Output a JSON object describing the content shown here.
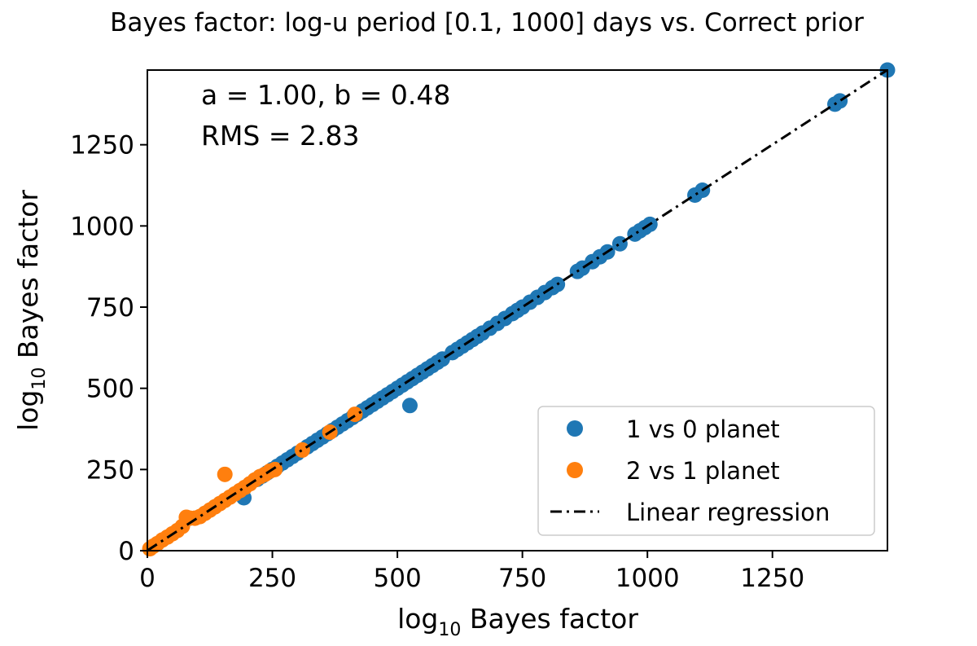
{
  "chart_data": {
    "type": "scatter",
    "title": "Bayes factor: log-u period [0.1, 1000] days vs. Correct prior",
    "xlabel": {
      "prefix": "log",
      "sub": "10",
      "suffix": " Bayes factor"
    },
    "ylabel": {
      "prefix": "log",
      "sub": "10",
      "suffix": " Bayes factor"
    },
    "xlim": [
      0,
      1480
    ],
    "ylim": [
      0,
      1480
    ],
    "xticks": [
      0,
      250,
      500,
      750,
      1000,
      1250
    ],
    "yticks": [
      0,
      250,
      500,
      750,
      1000,
      1250
    ],
    "xtick_labels": [
      "0",
      "250",
      "500",
      "750",
      "1000",
      "1250"
    ],
    "ytick_labels": [
      "0",
      "250",
      "500",
      "750",
      "1000",
      "1250"
    ],
    "grid": false,
    "annotations": [
      "a = 1.00, b = 0.48",
      "RMS = 2.83"
    ],
    "legend": {
      "placement": "lower-right",
      "entries": [
        "1 vs 0 planet",
        "2 vs 1 planet",
        "Linear regression"
      ]
    },
    "regression": {
      "name": "Linear regression",
      "slope": 1.0,
      "intercept": 0.48,
      "color": "#000000"
    },
    "series": [
      {
        "name": "1 vs 0 planet",
        "color": "#1f77b4",
        "points": [
          [
            1480,
            1480
          ],
          [
            1385,
            1385
          ],
          [
            1375,
            1375
          ],
          [
            1110,
            1110
          ],
          [
            1095,
            1095
          ],
          [
            1005,
            1005
          ],
          [
            995,
            995
          ],
          [
            985,
            985
          ],
          [
            975,
            975
          ],
          [
            945,
            945
          ],
          [
            920,
            920
          ],
          [
            905,
            905
          ],
          [
            890,
            890
          ],
          [
            870,
            870
          ],
          [
            860,
            860
          ],
          [
            820,
            820
          ],
          [
            810,
            810
          ],
          [
            795,
            795
          ],
          [
            780,
            780
          ],
          [
            765,
            765
          ],
          [
            750,
            750
          ],
          [
            740,
            740
          ],
          [
            730,
            730
          ],
          [
            715,
            715
          ],
          [
            700,
            700
          ],
          [
            685,
            685
          ],
          [
            670,
            670
          ],
          [
            660,
            660
          ],
          [
            650,
            650
          ],
          [
            640,
            640
          ],
          [
            630,
            630
          ],
          [
            620,
            620
          ],
          [
            610,
            610
          ],
          [
            590,
            590
          ],
          [
            580,
            580
          ],
          [
            570,
            570
          ],
          [
            560,
            560
          ],
          [
            550,
            550
          ],
          [
            540,
            540
          ],
          [
            530,
            530
          ],
          [
            520,
            520
          ],
          [
            510,
            510
          ],
          [
            500,
            500
          ],
          [
            490,
            490
          ],
          [
            480,
            480
          ],
          [
            470,
            470
          ],
          [
            460,
            460
          ],
          [
            450,
            450
          ],
          [
            440,
            440
          ],
          [
            430,
            430
          ],
          [
            420,
            420
          ],
          [
            410,
            410
          ],
          [
            400,
            400
          ],
          [
            390,
            390
          ],
          [
            380,
            380
          ],
          [
            370,
            370
          ],
          [
            360,
            360
          ],
          [
            350,
            350
          ],
          [
            340,
            340
          ],
          [
            330,
            330
          ],
          [
            320,
            320
          ],
          [
            300,
            300
          ],
          [
            290,
            290
          ],
          [
            280,
            280
          ],
          [
            270,
            270
          ],
          [
            260,
            260
          ],
          [
            250,
            250
          ],
          [
            240,
            240
          ],
          [
            230,
            230
          ],
          [
            220,
            220
          ],
          [
            525,
            447
          ],
          [
            193,
            163
          ]
        ]
      },
      {
        "name": "2 vs 1 planet",
        "color": "#ff7f0e",
        "points": [
          [
            415,
            420
          ],
          [
            365,
            365
          ],
          [
            310,
            310
          ],
          [
            255,
            250
          ],
          [
            245,
            245
          ],
          [
            235,
            235
          ],
          [
            225,
            228
          ],
          [
            215,
            218
          ],
          [
            205,
            206
          ],
          [
            195,
            195
          ],
          [
            185,
            185
          ],
          [
            175,
            175
          ],
          [
            165,
            165
          ],
          [
            155,
            155
          ],
          [
            145,
            145
          ],
          [
            135,
            135
          ],
          [
            125,
            125
          ],
          [
            115,
            115
          ],
          [
            105,
            105
          ],
          [
            95,
            100
          ],
          [
            85,
            100
          ],
          [
            78,
            103
          ],
          [
            70,
            75
          ],
          [
            60,
            62
          ],
          [
            50,
            52
          ],
          [
            40,
            42
          ],
          [
            30,
            33
          ],
          [
            20,
            22
          ],
          [
            12,
            14
          ],
          [
            5,
            6
          ],
          [
            155,
            235
          ]
        ]
      }
    ]
  }
}
